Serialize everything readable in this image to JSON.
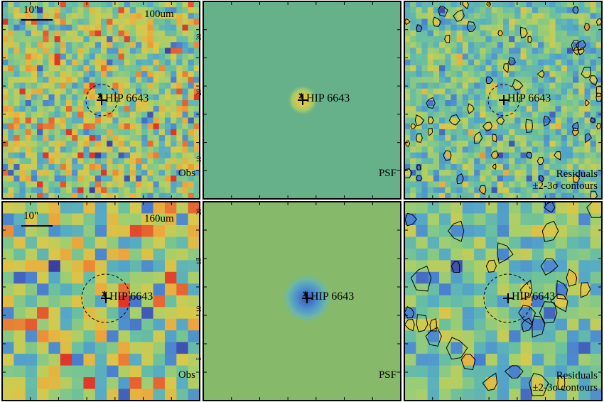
{
  "figure": {
    "rows": [
      {
        "band": "100um",
        "scalebar": "10\"",
        "grid_n": 34,
        "seed": 11,
        "source": "HIP 6643",
        "panels": [
          {
            "kind": "observed",
            "label": "Obs",
            "ticks": []
          },
          {
            "kind": "psf",
            "label": "PSF",
            "ticks": [
              "10",
              "20",
              "30"
            ]
          },
          {
            "kind": "residual",
            "label": "Residuals",
            "sublabel": "±2-3σ contours",
            "ticks": []
          }
        ]
      },
      {
        "band": "160um",
        "scalebar": "10\"",
        "grid_n": 17,
        "seed": 29,
        "source": "HIP 6643",
        "panels": [
          {
            "kind": "observed",
            "label": "Obs",
            "ticks": []
          },
          {
            "kind": "psf",
            "label": "PSF",
            "ticks": [
              "5",
              "10",
              "15",
              "20"
            ]
          },
          {
            "kind": "residual",
            "label": "Residuals",
            "sublabel": "±2-3σ contours",
            "ticks": []
          }
        ]
      }
    ],
    "colors": {
      "psf_background_100um": "#66b08a",
      "psf_background_160um": "#86b96a",
      "colormap": [
        "#3b3fa4",
        "#4a7fd0",
        "#55a9c8",
        "#6cc29c",
        "#a7cf6a",
        "#d8c94a",
        "#eea43a",
        "#e0362a"
      ]
    }
  }
}
